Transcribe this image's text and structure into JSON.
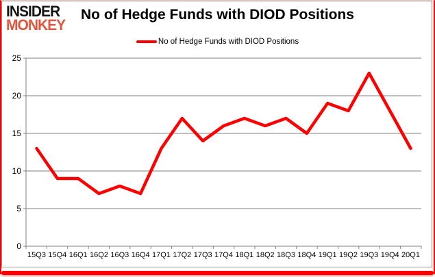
{
  "logo": {
    "line1": "INSIDER",
    "line2": "MONKEY"
  },
  "header": {
    "title": "No of Hedge Funds with DIOD Positions"
  },
  "legend": {
    "label": "No of Hedge Funds with DIOD Positions"
  },
  "colors": {
    "line": "#fe0000",
    "logo_accent": "#e0563e",
    "gridline": "#808080",
    "axis": "#808080",
    "chart_border": "#9a9a9a",
    "frame": "#fb0000",
    "text": "#000000"
  },
  "chart_data": {
    "type": "line",
    "title": "No of Hedge Funds with DIOD Positions",
    "categories": [
      "15Q3",
      "15Q4",
      "16Q1",
      "16Q2",
      "16Q3",
      "16Q4",
      "17Q1",
      "17Q2",
      "17Q3",
      "17Q4",
      "18Q1",
      "18Q2",
      "18Q3",
      "18Q4",
      "19Q1",
      "19Q2",
      "19Q3",
      "19Q4",
      "20Q1"
    ],
    "series": [
      {
        "name": "No of Hedge Funds with DIOD Positions",
        "values": [
          13,
          9,
          9,
          7,
          8,
          7,
          13,
          17,
          14,
          16,
          17,
          16,
          17,
          15,
          19,
          18,
          23,
          18,
          13
        ]
      }
    ],
    "xlabel": "",
    "ylabel": "",
    "ylim": [
      0,
      25
    ],
    "yticks": [
      0,
      5,
      10,
      15,
      20,
      25
    ],
    "grid": true,
    "legend_position": "top-center"
  }
}
